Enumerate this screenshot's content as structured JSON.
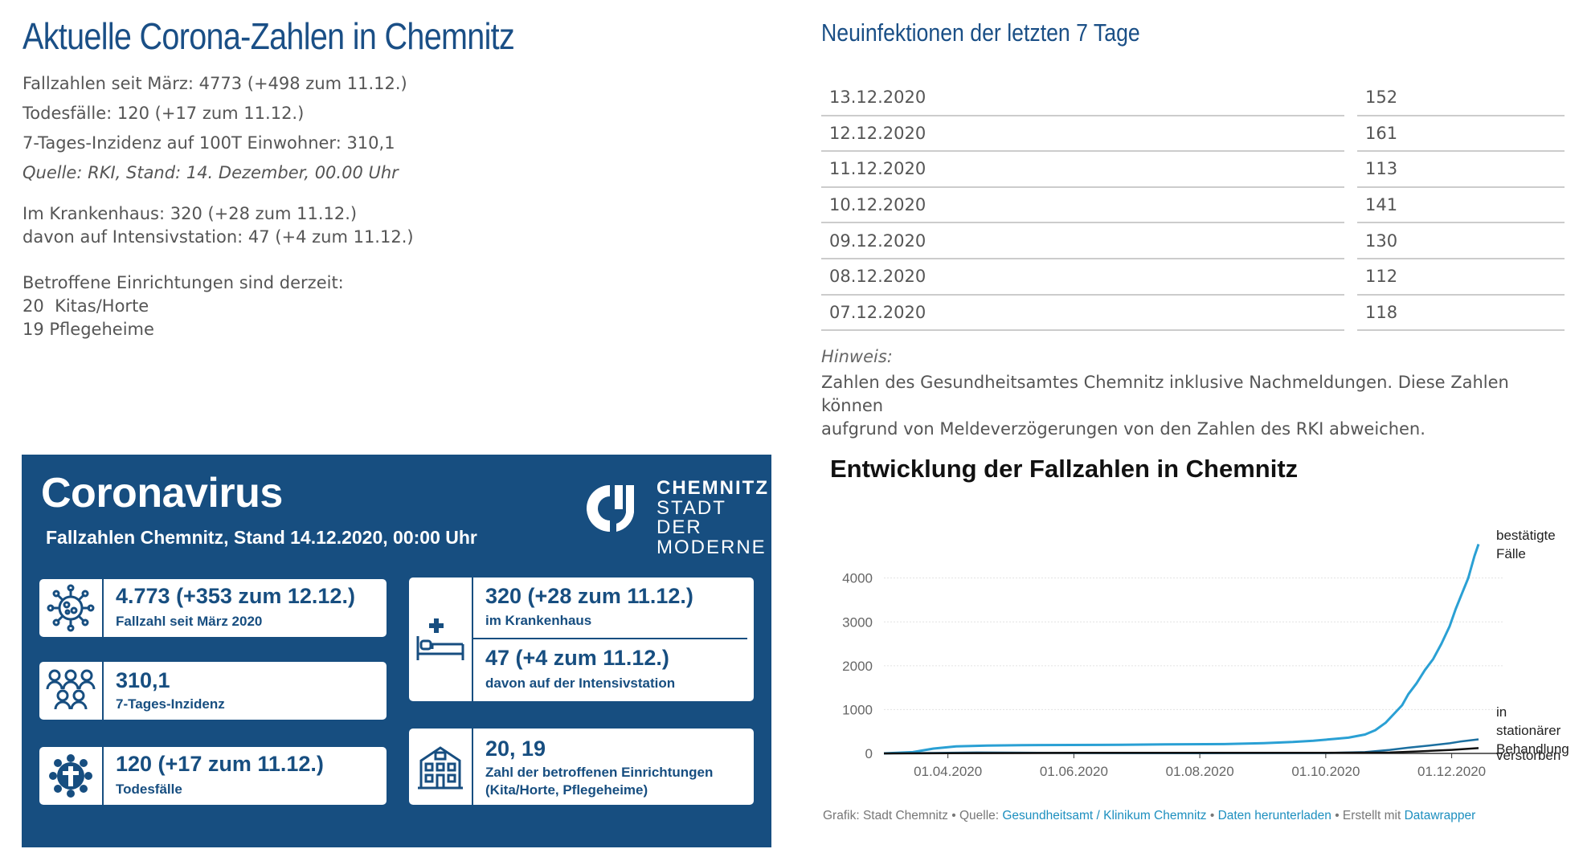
{
  "left": {
    "title": "Aktuelle Corona-Zahlen in Chemnitz",
    "facts": [
      "Fallzahlen seit März: 4773 (+498 zum 11.12.)",
      "Todesfälle: 120 (+17 zum 11.12.)",
      "7-Tages-Inzidenz auf 100T Einwohner: 310,1",
      "Quelle: RKI, Stand: 14. Dezember, 00.00 Uhr"
    ],
    "hospital": [
      "Im Krankenhaus: 320 (+28 zum 11.12.)",
      "davon auf Intensivstation: 47 (+4 zum 11.12.)"
    ],
    "facilities": [
      "Betroffene Einrichtungen sind derzeit:",
      "20  Kitas/Horte",
      "19 Pflegeheime"
    ]
  },
  "table": {
    "title": "Neuinfektionen der letzten 7 Tage",
    "rows": [
      {
        "date": "13.12.2020",
        "value": "152"
      },
      {
        "date": "12.12.2020",
        "value": "161"
      },
      {
        "date": "11.12.2020",
        "value": "113"
      },
      {
        "date": "10.12.2020",
        "value": "141"
      },
      {
        "date": "09.12.2020",
        "value": "130"
      },
      {
        "date": "08.12.2020",
        "value": "112"
      },
      {
        "date": "07.12.2020",
        "value": "118"
      }
    ],
    "hint_label": "Hinweis:",
    "hint_lines": [
      "Zahlen des Gesundheitsamtes Chemnitz inklusive Nachmeldungen. Diese Zahlen können",
      "aufgrund von Meldeverzögerungen von den Zahlen des RKI abweichen."
    ]
  },
  "infographic": {
    "title": "Coronavirus",
    "subtitle": "Fallzahlen Chemnitz, Stand 14.12.2020, 00:00 Uhr",
    "logo_lines": [
      "CHEMNITZ",
      "STADT DER",
      "MODERNE"
    ],
    "colors": {
      "background": "#174e80",
      "card": "#ffffff"
    },
    "cards": {
      "cases": {
        "icon": "virus-icon",
        "value": "4.773 (+353 zum 12.12.)",
        "label": "Fallzahl seit März 2020"
      },
      "incidence": {
        "icon": "people-group-icon",
        "value": "310,1",
        "label": "7-Tages-Inzidenz"
      },
      "deaths": {
        "icon": "cross-icon",
        "value": "120 (+17 zum 11.12.)",
        "label": "Todesfälle"
      },
      "hospital": {
        "icon": "hospital-bed-icon",
        "value": "320 (+28 zum 11.12.)",
        "label": "im Krankenhaus"
      },
      "icu": {
        "value": "47 (+4 zum 11.12.)",
        "label": "davon auf der Intensivstation"
      },
      "facilities": {
        "icon": "building-icon",
        "value": "20, 19",
        "label_lines": [
          "Zahl der betroffenen Einrichtungen",
          "(Kita/Horte, Pflegeheime)"
        ]
      }
    }
  },
  "chart_title": "Entwicklung der Fallzahlen in Chemnitz",
  "chart_data": {
    "type": "line",
    "xlim": [
      "2020-03-01",
      "2020-12-14"
    ],
    "ylim": [
      0,
      4800
    ],
    "y_ticks": [
      "4000",
      "3000",
      "2000",
      "1000",
      "0"
    ],
    "x_ticks": [
      "01.04.2020",
      "01.06.2020",
      "01.08.2020",
      "01.10.2020",
      "01.12.2020"
    ],
    "grid": true,
    "series": [
      {
        "name": "bestätigte Fälle",
        "label_lines": [
          "bestätigte",
          "Fälle"
        ],
        "color": "#2aa0d4",
        "x": [
          "2020-03-01",
          "2020-03-15",
          "2020-03-25",
          "2020-04-05",
          "2020-04-20",
          "2020-05-15",
          "2020-06-15",
          "2020-07-15",
          "2020-08-15",
          "2020-09-01",
          "2020-09-15",
          "2020-09-25",
          "2020-10-05",
          "2020-10-12",
          "2020-10-20",
          "2020-10-25",
          "2020-10-30",
          "2020-11-03",
          "2020-11-07",
          "2020-11-10",
          "2020-11-14",
          "2020-11-18",
          "2020-11-22",
          "2020-11-26",
          "2020-11-30",
          "2020-12-03",
          "2020-12-06",
          "2020-12-09",
          "2020-12-12",
          "2020-12-14"
        ],
        "values": [
          0,
          30,
          110,
          160,
          180,
          190,
          195,
          205,
          215,
          235,
          260,
          290,
          330,
          360,
          430,
          530,
          700,
          900,
          1100,
          1350,
          1600,
          1900,
          2150,
          2500,
          2900,
          3300,
          3650,
          4000,
          4500,
          4773
        ]
      },
      {
        "name": "in stationärer Behandlung",
        "label_lines": [
          "in",
          "stationärer",
          "Behandlung"
        ],
        "color": "#1b6fa0",
        "x": [
          "2020-03-01",
          "2020-04-15",
          "2020-06-01",
          "2020-08-01",
          "2020-10-01",
          "2020-10-20",
          "2020-11-01",
          "2020-11-10",
          "2020-11-20",
          "2020-11-30",
          "2020-12-05",
          "2020-12-14"
        ],
        "values": [
          0,
          20,
          10,
          5,
          10,
          30,
          80,
          130,
          180,
          230,
          270,
          320
        ]
      },
      {
        "name": "verstorben",
        "label_lines": [
          "verstorben"
        ],
        "color": "#111111",
        "x": [
          "2020-03-01",
          "2020-04-15",
          "2020-06-01",
          "2020-08-01",
          "2020-10-01",
          "2020-11-01",
          "2020-11-15",
          "2020-12-01",
          "2020-12-14"
        ],
        "values": [
          0,
          8,
          12,
          12,
          14,
          20,
          45,
          80,
          120
        ]
      }
    ]
  },
  "footer": {
    "prefix": "Grafik: Stadt Chemnitz • Quelle: ",
    "source_link": "Gesundheitsamt / Klinikum Chemnitz",
    "sep1": " • ",
    "download_link": "Daten herunterladen",
    "sep2": " • Erstellt mit ",
    "tool_link": "Datawrapper"
  }
}
